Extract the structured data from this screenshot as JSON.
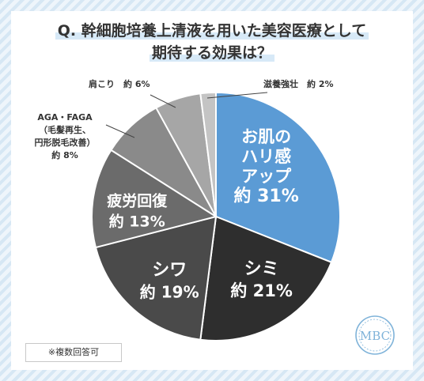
{
  "title": {
    "line1": "Q. 幹細胞培養上清液を用いた美容医療として",
    "line2": "期待する効果は？"
  },
  "chart_data": {
    "type": "pie",
    "start_angle_deg": 0,
    "direction": "clockwise",
    "slices": [
      {
        "label_lines": [
          "お肌の",
          "ハリ感",
          "アップ"
        ],
        "value_text": "約 31%",
        "value": 31,
        "color": "#5b9bd5",
        "label_pos": "inside",
        "label_color": "#ffffff"
      },
      {
        "label_lines": [
          "シミ"
        ],
        "value_text": "約 21%",
        "value": 21,
        "color": "#2e2e2e",
        "label_pos": "inside",
        "label_color": "#ffffff"
      },
      {
        "label_lines": [
          "シワ"
        ],
        "value_text": "約 19%",
        "value": 19,
        "color": "#4a4a4a",
        "label_pos": "inside",
        "label_color": "#ffffff"
      },
      {
        "label_lines": [
          "疲労回復"
        ],
        "value_text": "約 13%",
        "value": 13,
        "color": "#6b6b6b",
        "label_pos": "inside",
        "label_color": "#ffffff"
      },
      {
        "label_lines": [
          "AGA・FAGA",
          "（毛髪再生、",
          "円形脱毛改善）"
        ],
        "value_text": "約 8%",
        "value": 8,
        "color": "#8a8a8a",
        "label_pos": "outside",
        "label_color": "#333333"
      },
      {
        "label_lines": [
          "肩こり"
        ],
        "value_text": "約 6%",
        "value": 6,
        "color": "#a6a6a6",
        "label_pos": "outside",
        "label_color": "#333333"
      },
      {
        "label_lines": [
          "滋養強壮"
        ],
        "value_text": "約 2%",
        "value": 2,
        "color": "#c4c4c4",
        "label_pos": "outside",
        "label_color": "#333333"
      }
    ]
  },
  "footnote": "※複数回答可",
  "logo": {
    "text": "MBC",
    "color": "#7fb3d9"
  }
}
